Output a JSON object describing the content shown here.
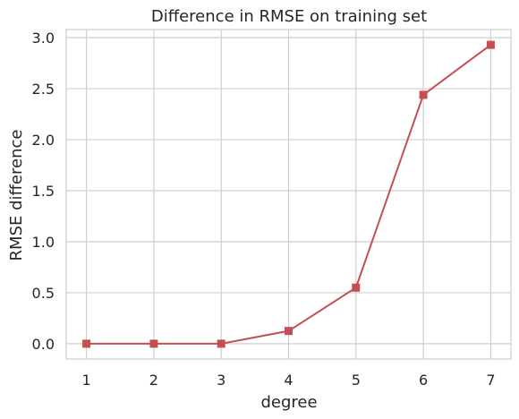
{
  "chart_data": {
    "type": "line",
    "title": "Difference in RMSE on training set",
    "xlabel": "degree",
    "ylabel": "RMSE difference",
    "x": [
      1,
      2,
      3,
      4,
      5,
      6,
      7
    ],
    "series": [
      {
        "values": [
          0.0,
          0.0,
          0.0,
          0.125,
          0.55,
          2.44,
          2.93
        ],
        "color": "#c44e52",
        "marker": "square"
      }
    ],
    "xticks": [
      "1",
      "2",
      "3",
      "4",
      "5",
      "6",
      "7"
    ],
    "yticks": [
      "0.0",
      "0.5",
      "1.0",
      "1.5",
      "2.0",
      "2.5",
      "3.0"
    ],
    "xlim": [
      0.7,
      7.3
    ],
    "ylim": [
      -0.15,
      3.08
    ],
    "grid": true,
    "legend": "none"
  }
}
